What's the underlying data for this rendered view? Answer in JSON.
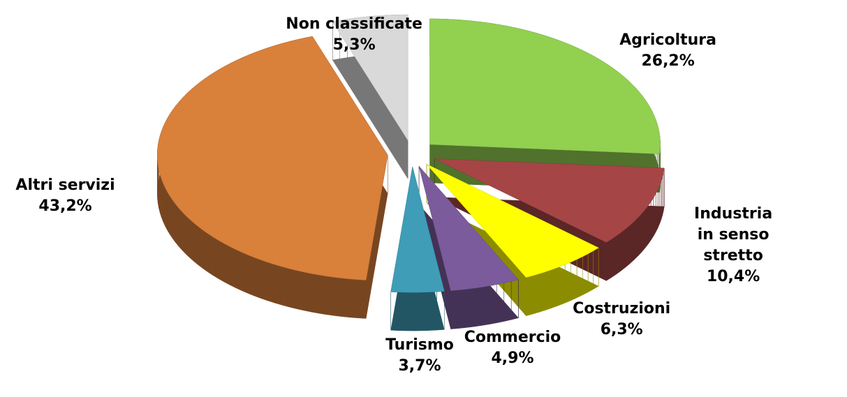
{
  "chart_data": {
    "type": "pie",
    "categories": [
      "Agricoltura",
      "Industria\nin senso stretto",
      "Costruzioni",
      "Commercio",
      "Turismo",
      "Altri servizi",
      "Non classificate"
    ],
    "values": [
      26.2,
      10.4,
      6.3,
      4.9,
      3.7,
      43.2,
      5.3
    ],
    "value_labels": [
      "26,2%",
      "10,4%",
      "6,3%",
      "4,9%",
      "3,7%",
      "43,2%",
      "5,3%"
    ],
    "colors": [
      "#92d050",
      "#a64545",
      "#ffff00",
      "#7b5b9c",
      "#3f9db8",
      "#d9803b",
      "#d9d9d9"
    ]
  }
}
